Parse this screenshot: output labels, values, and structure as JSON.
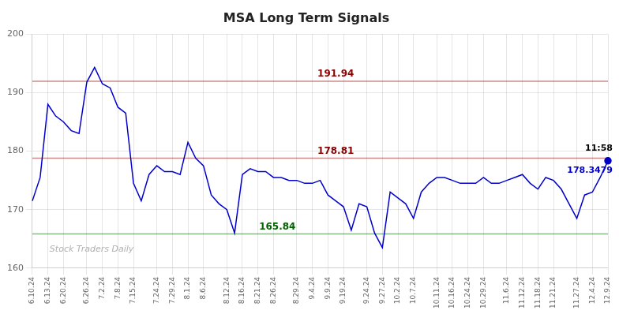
{
  "chart_data": {
    "type": "line",
    "title": "MSA Long Term Signals",
    "categories": [
      "6.10.24",
      null,
      "6.13.24",
      null,
      "6.20.24",
      null,
      null,
      "6.26.24",
      null,
      "7.2.24",
      null,
      "7.8.24",
      null,
      "7.15.24",
      null,
      null,
      "7.24.24",
      null,
      "7.29.24",
      null,
      "8.1.24",
      null,
      "8.6.24",
      null,
      null,
      "8.12.24",
      null,
      "8.16.24",
      null,
      "8.21.24",
      null,
      "8.26.24",
      null,
      null,
      "8.29.24",
      null,
      "9.4.24",
      null,
      "9.9.24",
      null,
      "9.19.24",
      null,
      null,
      "9.24.24",
      null,
      "9.27.24",
      null,
      "10.2.24",
      null,
      "10.7.24",
      null,
      null,
      "10.11.24",
      null,
      "10.16.24",
      null,
      "10.24.24",
      null,
      "10.29.24",
      null,
      null,
      "11.6.24",
      null,
      "11.12.24",
      null,
      "11.18.24",
      null,
      "11.21.24",
      null,
      null,
      "11.27.24",
      null,
      "12.4.24",
      null,
      "12.9.24"
    ],
    "values": [
      171.5,
      175.5,
      188.0,
      186.0,
      185.0,
      183.5,
      183.0,
      191.8,
      194.3,
      191.5,
      190.8,
      187.5,
      186.5,
      174.5,
      171.5,
      176.0,
      177.5,
      176.5,
      176.5,
      176.0,
      181.5,
      178.8,
      177.5,
      172.5,
      171.0,
      170.0,
      166.0,
      176.0,
      177.0,
      176.5,
      176.5,
      175.5,
      175.5,
      175.0,
      175.0,
      174.5,
      174.5,
      175.0,
      172.5,
      171.5,
      170.5,
      166.5,
      171.0,
      170.5,
      166.0,
      163.5,
      173.0,
      172.0,
      171.0,
      168.5,
      173.0,
      174.5,
      175.5,
      175.5,
      175.0,
      174.5,
      174.5,
      174.5,
      175.5,
      174.5,
      174.5,
      175.0,
      175.5,
      176.0,
      174.5,
      173.5,
      175.5,
      175.0,
      173.5,
      171.0,
      168.5,
      172.5,
      173.0,
      175.5,
      178.3479
    ],
    "color": "#0000cc",
    "ylim": [
      160,
      200
    ],
    "yticks": [
      160,
      170,
      180,
      190,
      200
    ],
    "grid": true,
    "reference_lines": [
      {
        "value": 191.94,
        "label": "191.94",
        "color": "#8b0000"
      },
      {
        "value": 178.81,
        "label": "178.81",
        "color": "#8b0000"
      },
      {
        "value": 165.84,
        "label": "165.84",
        "color": "#006400"
      }
    ],
    "annotations": [
      {
        "text": "11:58",
        "color": "#000000"
      },
      {
        "text": "178.3479",
        "color": "#0000cc"
      },
      {
        "text": "Stock Traders Daily",
        "color": "#b0b0b0"
      }
    ]
  }
}
